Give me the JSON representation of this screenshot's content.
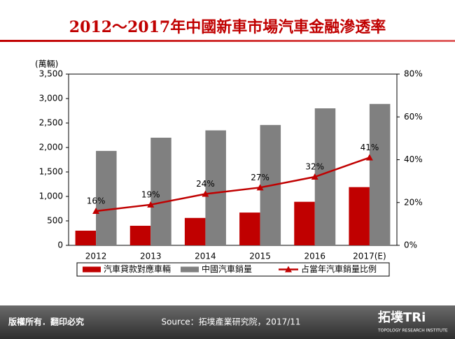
{
  "chart_data": {
    "type": "bar",
    "title": "2012～2017年中國新車市場汽車金融滲透率",
    "y_label": "(萬輛)",
    "categories": [
      "2012",
      "2013",
      "2014",
      "2015",
      "2016",
      "2017(E)"
    ],
    "series": [
      {
        "name": "汽車貸款對應車輛",
        "color": "#c00000",
        "values": [
          300,
          400,
          560,
          670,
          890,
          1190
        ]
      },
      {
        "name": "中國汽車銷量",
        "color": "#808080",
        "values": [
          1930,
          2200,
          2350,
          2460,
          2800,
          2890
        ]
      },
      {
        "name": "占當年汽車銷量比例",
        "color": "#c00000",
        "type": "line",
        "axis": "y2",
        "values": [
          16,
          19,
          24,
          27,
          32,
          41
        ],
        "value_labels": [
          "16%",
          "19%",
          "24%",
          "27%",
          "32%",
          "41%"
        ]
      }
    ],
    "ylim": [
      0,
      3500
    ],
    "yticks": [
      0,
      500,
      {
        "value": 1000,
        "label": "1,000"
      },
      {
        "value": 1500,
        "label": "1,500"
      },
      {
        "value": 2000,
        "label": "2,000"
      },
      {
        "value": 2500,
        "label": "2,500"
      },
      {
        "value": 3000,
        "label": "3,000"
      },
      {
        "value": 3500,
        "label": "3,500"
      }
    ],
    "y2lim": [
      0,
      80
    ],
    "y2ticks": [
      {
        "value": 0,
        "label": "0%"
      },
      {
        "value": 20,
        "label": "20%"
      },
      {
        "value": 40,
        "label": "40%"
      },
      {
        "value": 60,
        "label": "60%"
      },
      {
        "value": 80,
        "label": "80%"
      }
    ],
    "legend": "bottom"
  },
  "footer": {
    "copyright": "版權所有．翻印必究",
    "source": "Source：拓墣產業研究院，2017/11",
    "logo": "拓墣TRi",
    "logo_sub": "TOPOLOGY RESEARCH INSTITUTE"
  }
}
